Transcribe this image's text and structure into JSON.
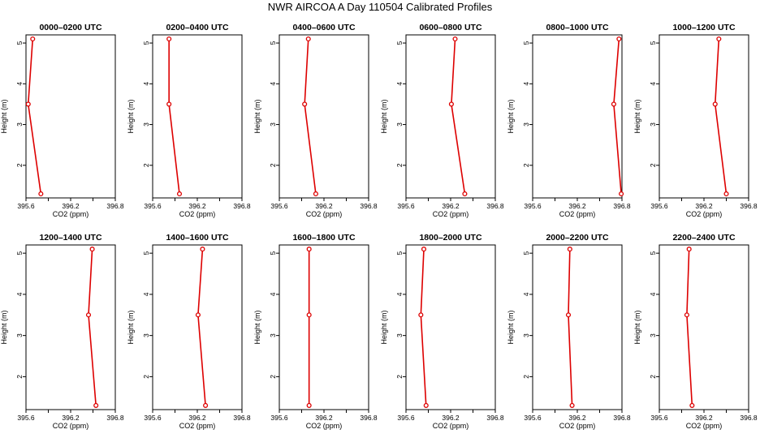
{
  "title": "NWR AIRCOA A  Day 110504  Calibrated Profiles",
  "chart_data": {
    "type": "line",
    "xlabel": "CO2 (ppm)",
    "ylabel": "Height (m)",
    "xlim": [
      395.6,
      396.8
    ],
    "ylim": [
      1.2,
      5.2
    ],
    "xticks": [
      "395.6",
      "396.2",
      "396.8"
    ],
    "yticks": [
      "2",
      "3",
      "4",
      "5"
    ],
    "heights": [
      5.1,
      3.5,
      1.3
    ],
    "panels": [
      {
        "title": "0000–0200 UTC",
        "values": [
          395.69,
          395.63,
          395.8
        ]
      },
      {
        "title": "0200–0400 UTC",
        "values": [
          395.82,
          395.82,
          395.96
        ]
      },
      {
        "title": "0400–0600 UTC",
        "values": [
          395.99,
          395.94,
          396.09
        ]
      },
      {
        "title": "0600–0800 UTC",
        "values": [
          396.26,
          396.21,
          396.39
        ]
      },
      {
        "title": "0800–1000 UTC",
        "values": [
          396.76,
          396.69,
          396.79
        ]
      },
      {
        "title": "1000–1200 UTC",
        "values": [
          396.4,
          396.35,
          396.5
        ]
      },
      {
        "title": "1200–1400 UTC",
        "values": [
          396.49,
          396.44,
          396.54
        ]
      },
      {
        "title": "1400–1600 UTC",
        "values": [
          396.27,
          396.21,
          396.31
        ]
      },
      {
        "title": "1600–1800 UTC",
        "values": [
          396.0,
          396.0,
          396.0
        ]
      },
      {
        "title": "1800–2000 UTC",
        "values": [
          395.84,
          395.8,
          395.87
        ]
      },
      {
        "title": "2000–2200 UTC",
        "values": [
          396.1,
          396.08,
          396.13
        ]
      },
      {
        "title": "2200–2400 UTC",
        "values": [
          396.0,
          395.97,
          396.04
        ]
      }
    ],
    "colors": {
      "line": "#dd0000",
      "axis": "#000000"
    }
  }
}
